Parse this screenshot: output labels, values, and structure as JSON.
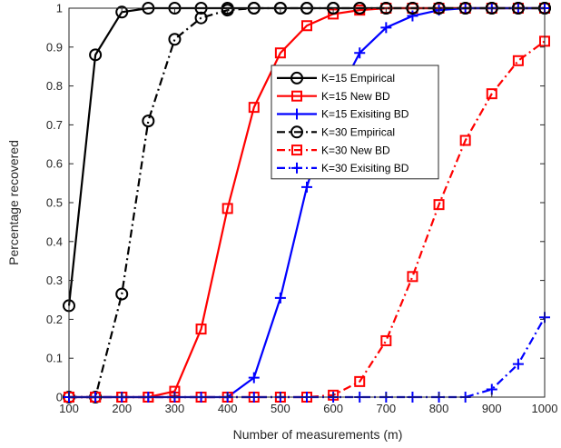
{
  "chart_data": {
    "type": "line",
    "xlabel": "Number of measurements (m)",
    "ylabel": "Percentage recovered",
    "xlim": [
      100,
      1000
    ],
    "ylim": [
      0,
      1
    ],
    "xticks": [
      "100",
      "200",
      "300",
      "400",
      "500",
      "600",
      "700",
      "800",
      "900",
      "1000"
    ],
    "yticks": [
      "0",
      "0.1",
      "0.2",
      "0.3",
      "0.4",
      "0.5",
      "0.6",
      "0.7",
      "0.8",
      "0.9",
      "1"
    ],
    "grid": false,
    "legend_position": "center",
    "x": [
      100,
      150,
      200,
      250,
      300,
      350,
      400,
      450,
      500,
      550,
      600,
      650,
      700,
      750,
      800,
      850,
      900,
      950,
      1000
    ],
    "series": [
      {
        "name": "K=15 Empirical",
        "color": "#000000",
        "dash": "solid",
        "marker": "circle",
        "values": [
          0.235,
          0.88,
          0.99,
          1,
          1,
          1,
          1,
          1,
          1,
          1,
          1,
          1,
          1,
          1,
          1,
          1,
          1,
          1,
          1
        ]
      },
      {
        "name": "K=15 New BD",
        "color": "#ff0000",
        "dash": "solid",
        "marker": "square",
        "values": [
          0,
          0,
          0,
          0,
          0.015,
          0.175,
          0.485,
          0.745,
          0.885,
          0.955,
          0.985,
          0.995,
          1,
          1,
          1,
          1,
          1,
          1,
          1
        ]
      },
      {
        "name": "K=15 Exisiting BD",
        "color": "#0000ff",
        "dash": "solid",
        "marker": "plus",
        "values": [
          0,
          0,
          0,
          0,
          0,
          0,
          0,
          0.05,
          0.255,
          0.54,
          0.755,
          0.885,
          0.95,
          0.98,
          0.995,
          1,
          1,
          1,
          1
        ]
      },
      {
        "name": "K=30 Empirical",
        "color": "#000000",
        "dash": "dashdot",
        "marker": "circle",
        "values": [
          0,
          0,
          0.265,
          0.71,
          0.92,
          0.975,
          0.995,
          1,
          1,
          1,
          1,
          1,
          1,
          1,
          1,
          1,
          1,
          1,
          1
        ]
      },
      {
        "name": "K=30 New BD",
        "color": "#ff0000",
        "dash": "dashdot",
        "marker": "square",
        "values": [
          0,
          0,
          0,
          0,
          0,
          0,
          0,
          0,
          0,
          0,
          0.005,
          0.04,
          0.145,
          0.31,
          0.495,
          0.66,
          0.78,
          0.865,
          0.915
        ]
      },
      {
        "name": "K=30 Exisiting BD",
        "color": "#0000ff",
        "dash": "dashdot",
        "marker": "plus",
        "values": [
          0,
          0,
          0,
          0,
          0,
          0,
          0,
          0,
          0,
          0,
          0,
          0,
          0,
          0,
          0,
          0,
          0.02,
          0.085,
          0.205
        ]
      }
    ]
  }
}
